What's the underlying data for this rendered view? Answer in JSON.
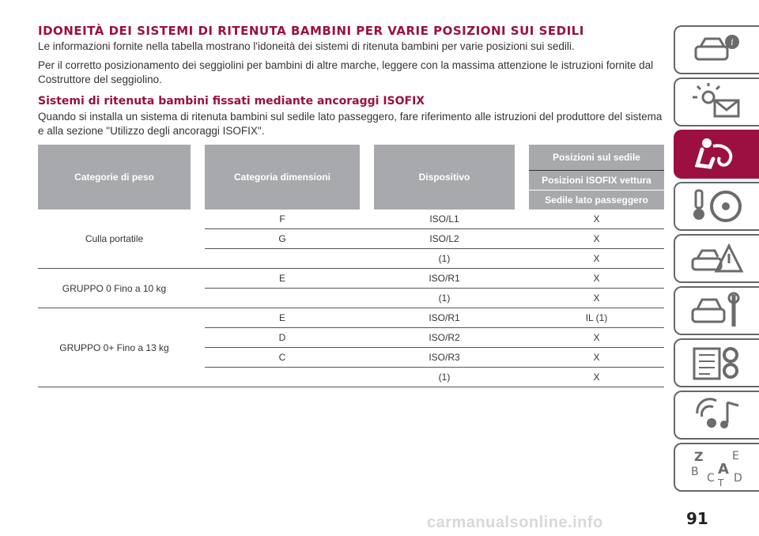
{
  "heading": "IDONEITÀ DEI SISTEMI DI RITENUTA BAMBINI PER VARIE POSIZIONI SUI SEDILI",
  "paragraph1": "Le informazioni fornite nella tabella mostrano l'idoneità dei sistemi di ritenuta bambini per varie posizioni sui sedili.",
  "paragraph2": "Per il corretto posizionamento dei seggiolini per bambini di altre marche, leggere con la massima attenzione le istruzioni fornite dal Costruttore del seggiolino.",
  "subheading": "Sistemi di ritenuta bambini fissati mediante ancoraggi ISOFIX",
  "paragraph3": "Quando si installa un sistema di ritenuta bambini sul sedile lato passeggero, fare riferimento alle istruzioni del produttore del sistema e alla sezione \"Utilizzo degli ancoraggi ISOFIX\".",
  "table": {
    "headers": {
      "weight": "Categorie di peso",
      "size": "Categoria dimensioni",
      "device": "Dispositivo",
      "positions": "Posizioni sul sedile",
      "isofix": "Posizioni ISOFIX vettura",
      "passenger": "Sedile lato passeggero"
    },
    "groups": [
      {
        "label": "Culla portatile",
        "rows": [
          {
            "size": "F",
            "device": "ISO/L1",
            "value": "X"
          },
          {
            "size": "G",
            "device": "ISO/L2",
            "value": "X"
          },
          {
            "size": "",
            "device": "(1)",
            "value": "X"
          }
        ]
      },
      {
        "label": "GRUPPO 0 Fino a 10 kg",
        "rows": [
          {
            "size": "E",
            "device": "ISO/R1",
            "value": "X"
          },
          {
            "size": "",
            "device": "(1)",
            "value": "X"
          }
        ]
      },
      {
        "label": "GRUPPO 0+ Fino a 13 kg",
        "rows": [
          {
            "size": "E",
            "device": "ISO/R1",
            "value": "IL (1)"
          },
          {
            "size": "D",
            "device": "ISO/R2",
            "value": "X"
          },
          {
            "size": "C",
            "device": "ISO/R3",
            "value": "X"
          },
          {
            "size": "",
            "device": "(1)",
            "value": "X"
          }
        ]
      }
    ]
  },
  "sidebar": {
    "tabs": [
      {
        "icon": "car-info-icon",
        "active": false
      },
      {
        "icon": "warning-lights-icon",
        "active": false
      },
      {
        "icon": "seat-safety-icon",
        "active": true
      },
      {
        "icon": "key-steering-icon",
        "active": false
      },
      {
        "icon": "emergency-icon",
        "active": false
      },
      {
        "icon": "car-maintenance-icon",
        "active": false
      },
      {
        "icon": "specifications-icon",
        "active": false
      },
      {
        "icon": "multimedia-icon",
        "active": false
      },
      {
        "icon": "index-icon",
        "active": false
      }
    ],
    "accent": "#9b1040"
  },
  "page_number": "91",
  "watermark": "carmanualsonline.info"
}
